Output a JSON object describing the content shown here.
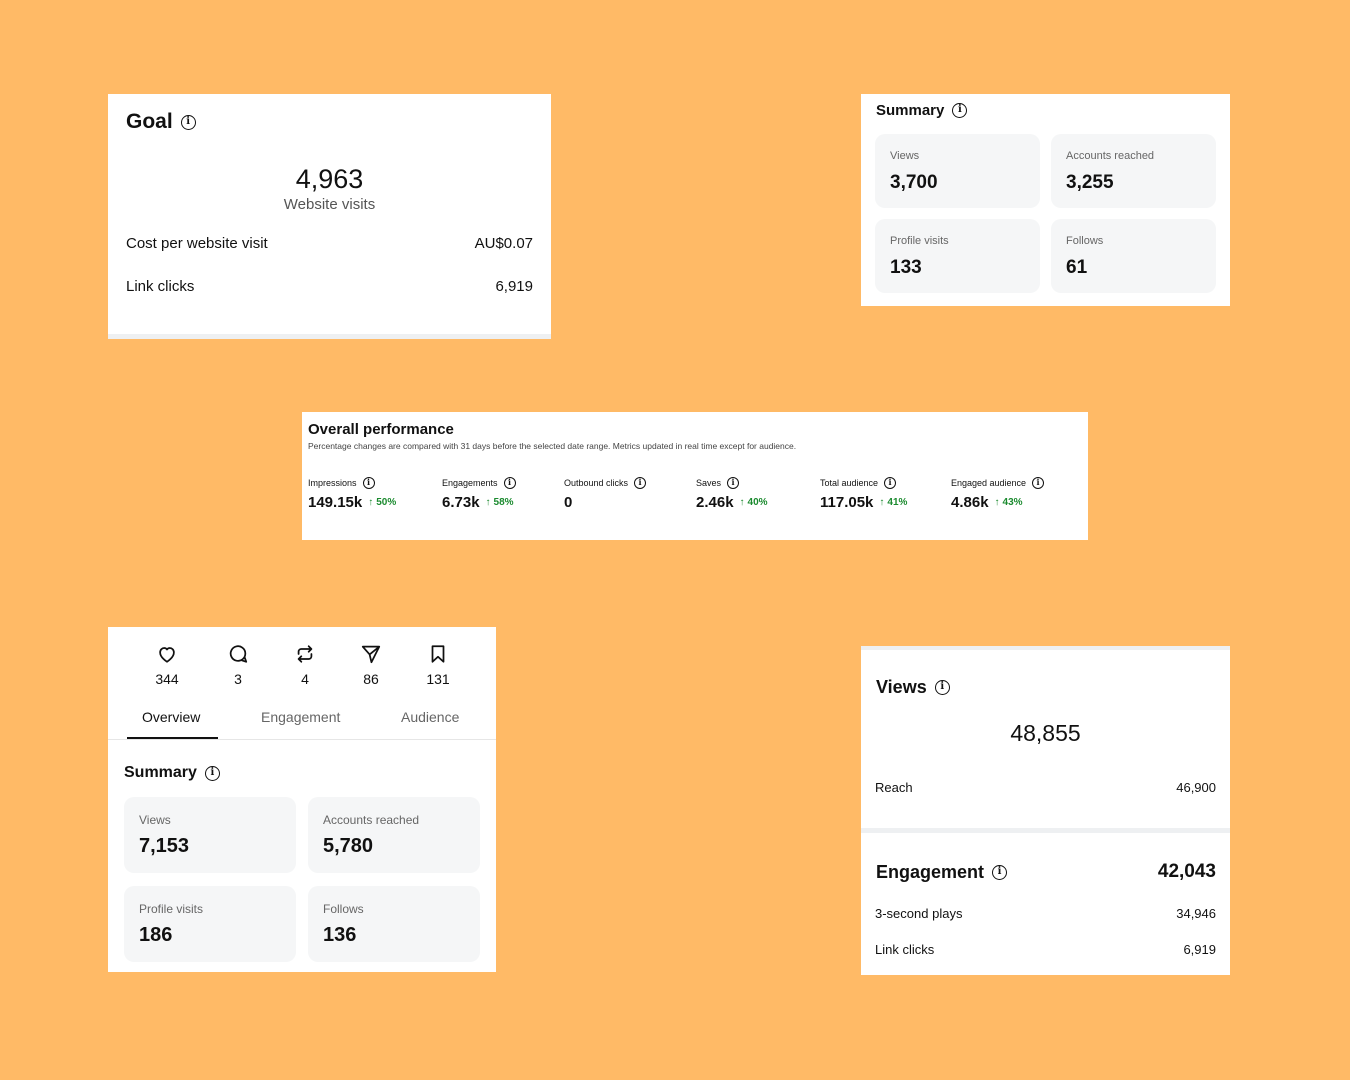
{
  "goal": {
    "title": "Goal",
    "value": "4,963",
    "value_label": "Website visits",
    "rows": [
      {
        "label": "Cost per website visit",
        "value": "AU$0.07"
      },
      {
        "label": "Link clicks",
        "value": "6,919"
      }
    ]
  },
  "summary_top": {
    "title": "Summary",
    "tiles": [
      {
        "label": "Views",
        "value": "3,700"
      },
      {
        "label": "Accounts reached",
        "value": "3,255"
      },
      {
        "label": "Profile visits",
        "value": "133"
      },
      {
        "label": "Follows",
        "value": "61"
      }
    ]
  },
  "performance": {
    "title": "Overall performance",
    "subtitle": "Percentage changes are compared with 31 days before the selected date range. Metrics updated in real time except for audience.",
    "metrics": [
      {
        "label": "Impressions",
        "value": "149.15k",
        "change": "50%"
      },
      {
        "label": "Engagements",
        "value": "6.73k",
        "change": "58%"
      },
      {
        "label": "Outbound clicks",
        "value": "0",
        "change": ""
      },
      {
        "label": "Saves",
        "value": "2.46k",
        "change": "40%"
      },
      {
        "label": "Total audience",
        "value": "117.05k",
        "change": "41%"
      },
      {
        "label": "Engaged audience",
        "value": "4.86k",
        "change": "43%"
      }
    ],
    "positive_color": "#1a8a2e"
  },
  "post": {
    "stats": [
      {
        "icon": "heart-icon",
        "value": "344"
      },
      {
        "icon": "comment-icon",
        "value": "3"
      },
      {
        "icon": "repost-icon",
        "value": "4"
      },
      {
        "icon": "share-icon",
        "value": "86"
      },
      {
        "icon": "bookmark-icon",
        "value": "131"
      }
    ],
    "tabs": [
      "Overview",
      "Engagement",
      "Audience"
    ],
    "active_tab": "Overview",
    "summary": {
      "title": "Summary",
      "tiles": [
        {
          "label": "Views",
          "value": "7,153"
        },
        {
          "label": "Accounts reached",
          "value": "5,780"
        },
        {
          "label": "Profile visits",
          "value": "186"
        },
        {
          "label": "Follows",
          "value": "136"
        }
      ]
    }
  },
  "views": {
    "title": "Views",
    "value": "48,855",
    "reach_label": "Reach",
    "reach_value": "46,900",
    "engagement_title": "Engagement",
    "engagement_value": "42,043",
    "rows": [
      {
        "label": "3-second plays",
        "value": "34,946"
      },
      {
        "label": "Link clicks",
        "value": "6,919"
      }
    ]
  },
  "colors": {
    "background": "#FFBA66",
    "tile": "#f5f6f7"
  }
}
